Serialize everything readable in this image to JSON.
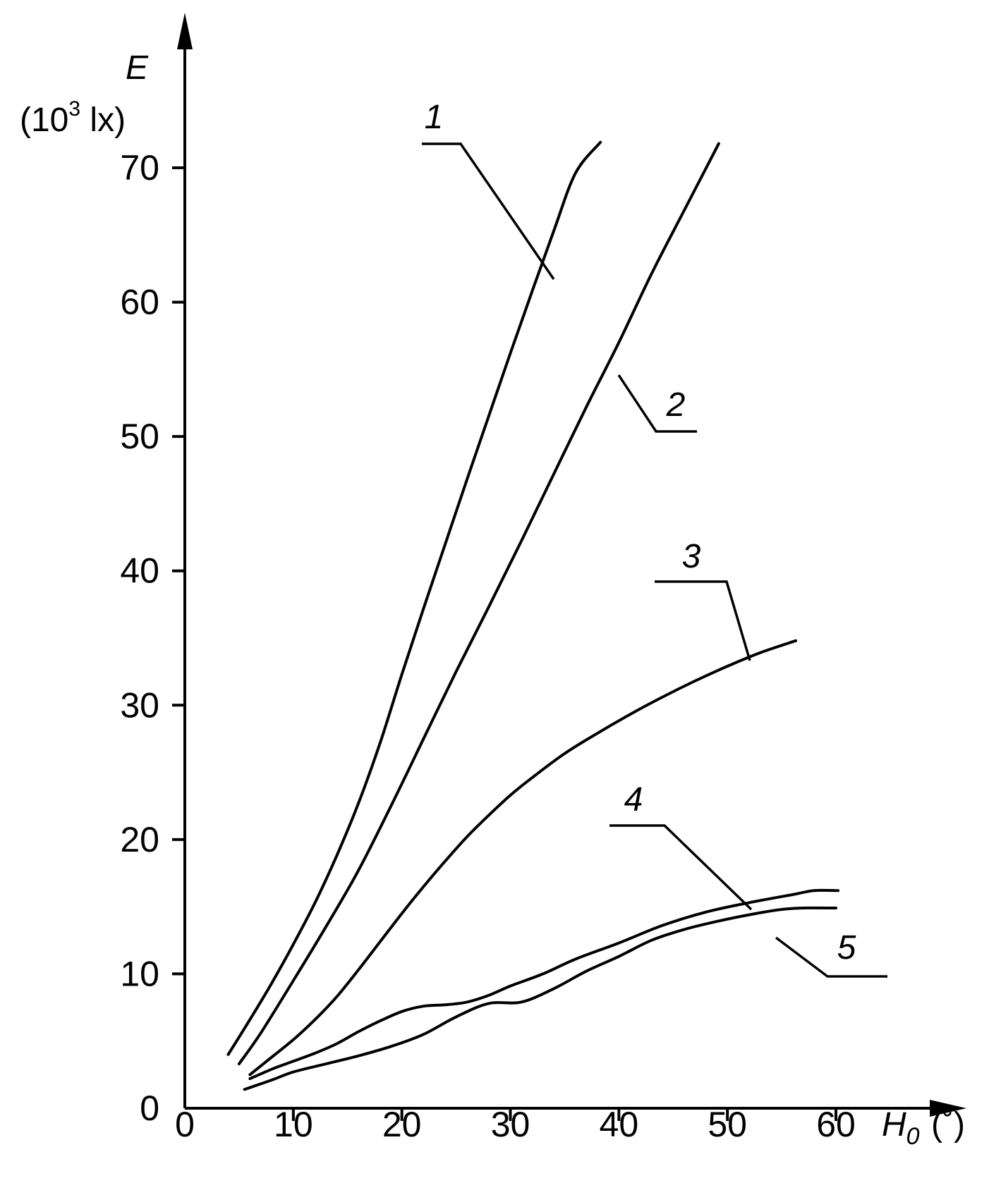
{
  "chart_data": {
    "type": "line",
    "xlabel": "H",
    "xlabel_sub": "0",
    "xlabel_unit": "(˚)",
    "ylabel": "E",
    "ylabel_unit": "(10",
    "ylabel_unit_exp": "3",
    "ylabel_unit_end": " lx)",
    "xlim": [
      0,
      60
    ],
    "ylim": [
      0,
      70
    ],
    "xticks": [
      0,
      10,
      20,
      30,
      40,
      50,
      60
    ],
    "yticks": [
      0,
      10,
      20,
      30,
      40,
      50,
      60,
      70
    ],
    "grid": false,
    "series": [
      {
        "name": "1",
        "x": [
          4,
          6,
          8,
          10,
          12,
          14,
          16,
          18,
          20,
          22,
          24,
          26,
          28,
          30,
          32,
          34,
          36,
          38.3
        ],
        "y": [
          4,
          6.6,
          9.3,
          12.2,
          15.3,
          18.8,
          22.7,
          27.2,
          32.3,
          37.2,
          42,
          46.8,
          51.5,
          56.2,
          60.8,
          65.3,
          69.6,
          71.9
        ]
      },
      {
        "name": "2",
        "x": [
          5,
          7,
          10,
          13,
          16,
          19,
          22,
          25,
          28,
          31,
          34,
          37,
          40,
          43,
          46,
          49.2
        ],
        "y": [
          3.3,
          5.6,
          9.5,
          13.5,
          17.7,
          22.5,
          27.5,
          32.5,
          37.3,
          42.2,
          47.2,
          52.2,
          57,
          62.1,
          66.8,
          71.8
        ]
      },
      {
        "name": "3",
        "x": [
          6,
          8,
          10,
          12,
          14,
          16,
          18,
          20,
          22,
          24,
          26,
          28,
          30,
          32,
          35,
          38,
          41,
          44,
          47,
          50,
          53,
          56.3
        ],
        "y": [
          2.5,
          3.8,
          5.1,
          6.6,
          8.3,
          10.3,
          12.4,
          14.5,
          16.5,
          18.4,
          20.2,
          21.8,
          23.3,
          24.6,
          26.4,
          27.9,
          29.3,
          30.6,
          31.8,
          32.9,
          33.9,
          34.8
        ]
      },
      {
        "name": "4",
        "x": [
          5.5,
          8,
          10,
          13,
          16,
          19,
          22,
          25,
          28,
          31,
          34,
          37,
          40,
          43,
          46,
          49,
          52,
          55,
          57,
          60
        ],
        "y": [
          1.4,
          2.1,
          2.7,
          3.3,
          3.9,
          4.6,
          5.5,
          6.8,
          7.8,
          7.9,
          8.9,
          10.2,
          11.3,
          12.5,
          13.3,
          13.9,
          14.4,
          14.8,
          14.9,
          14.9
        ]
      },
      {
        "name": "5",
        "x": [
          6,
          8,
          10,
          12,
          14,
          16,
          18,
          20,
          22,
          24,
          26,
          28,
          30,
          33,
          36,
          40,
          44,
          48,
          52,
          56,
          58,
          60.2
        ],
        "y": [
          2.2,
          2.9,
          3.5,
          4.1,
          4.8,
          5.7,
          6.5,
          7.2,
          7.6,
          7.7,
          7.9,
          8.4,
          9.1,
          10,
          11.1,
          12.3,
          13.6,
          14.6,
          15.3,
          15.9,
          16.2,
          16.2
        ]
      }
    ]
  }
}
